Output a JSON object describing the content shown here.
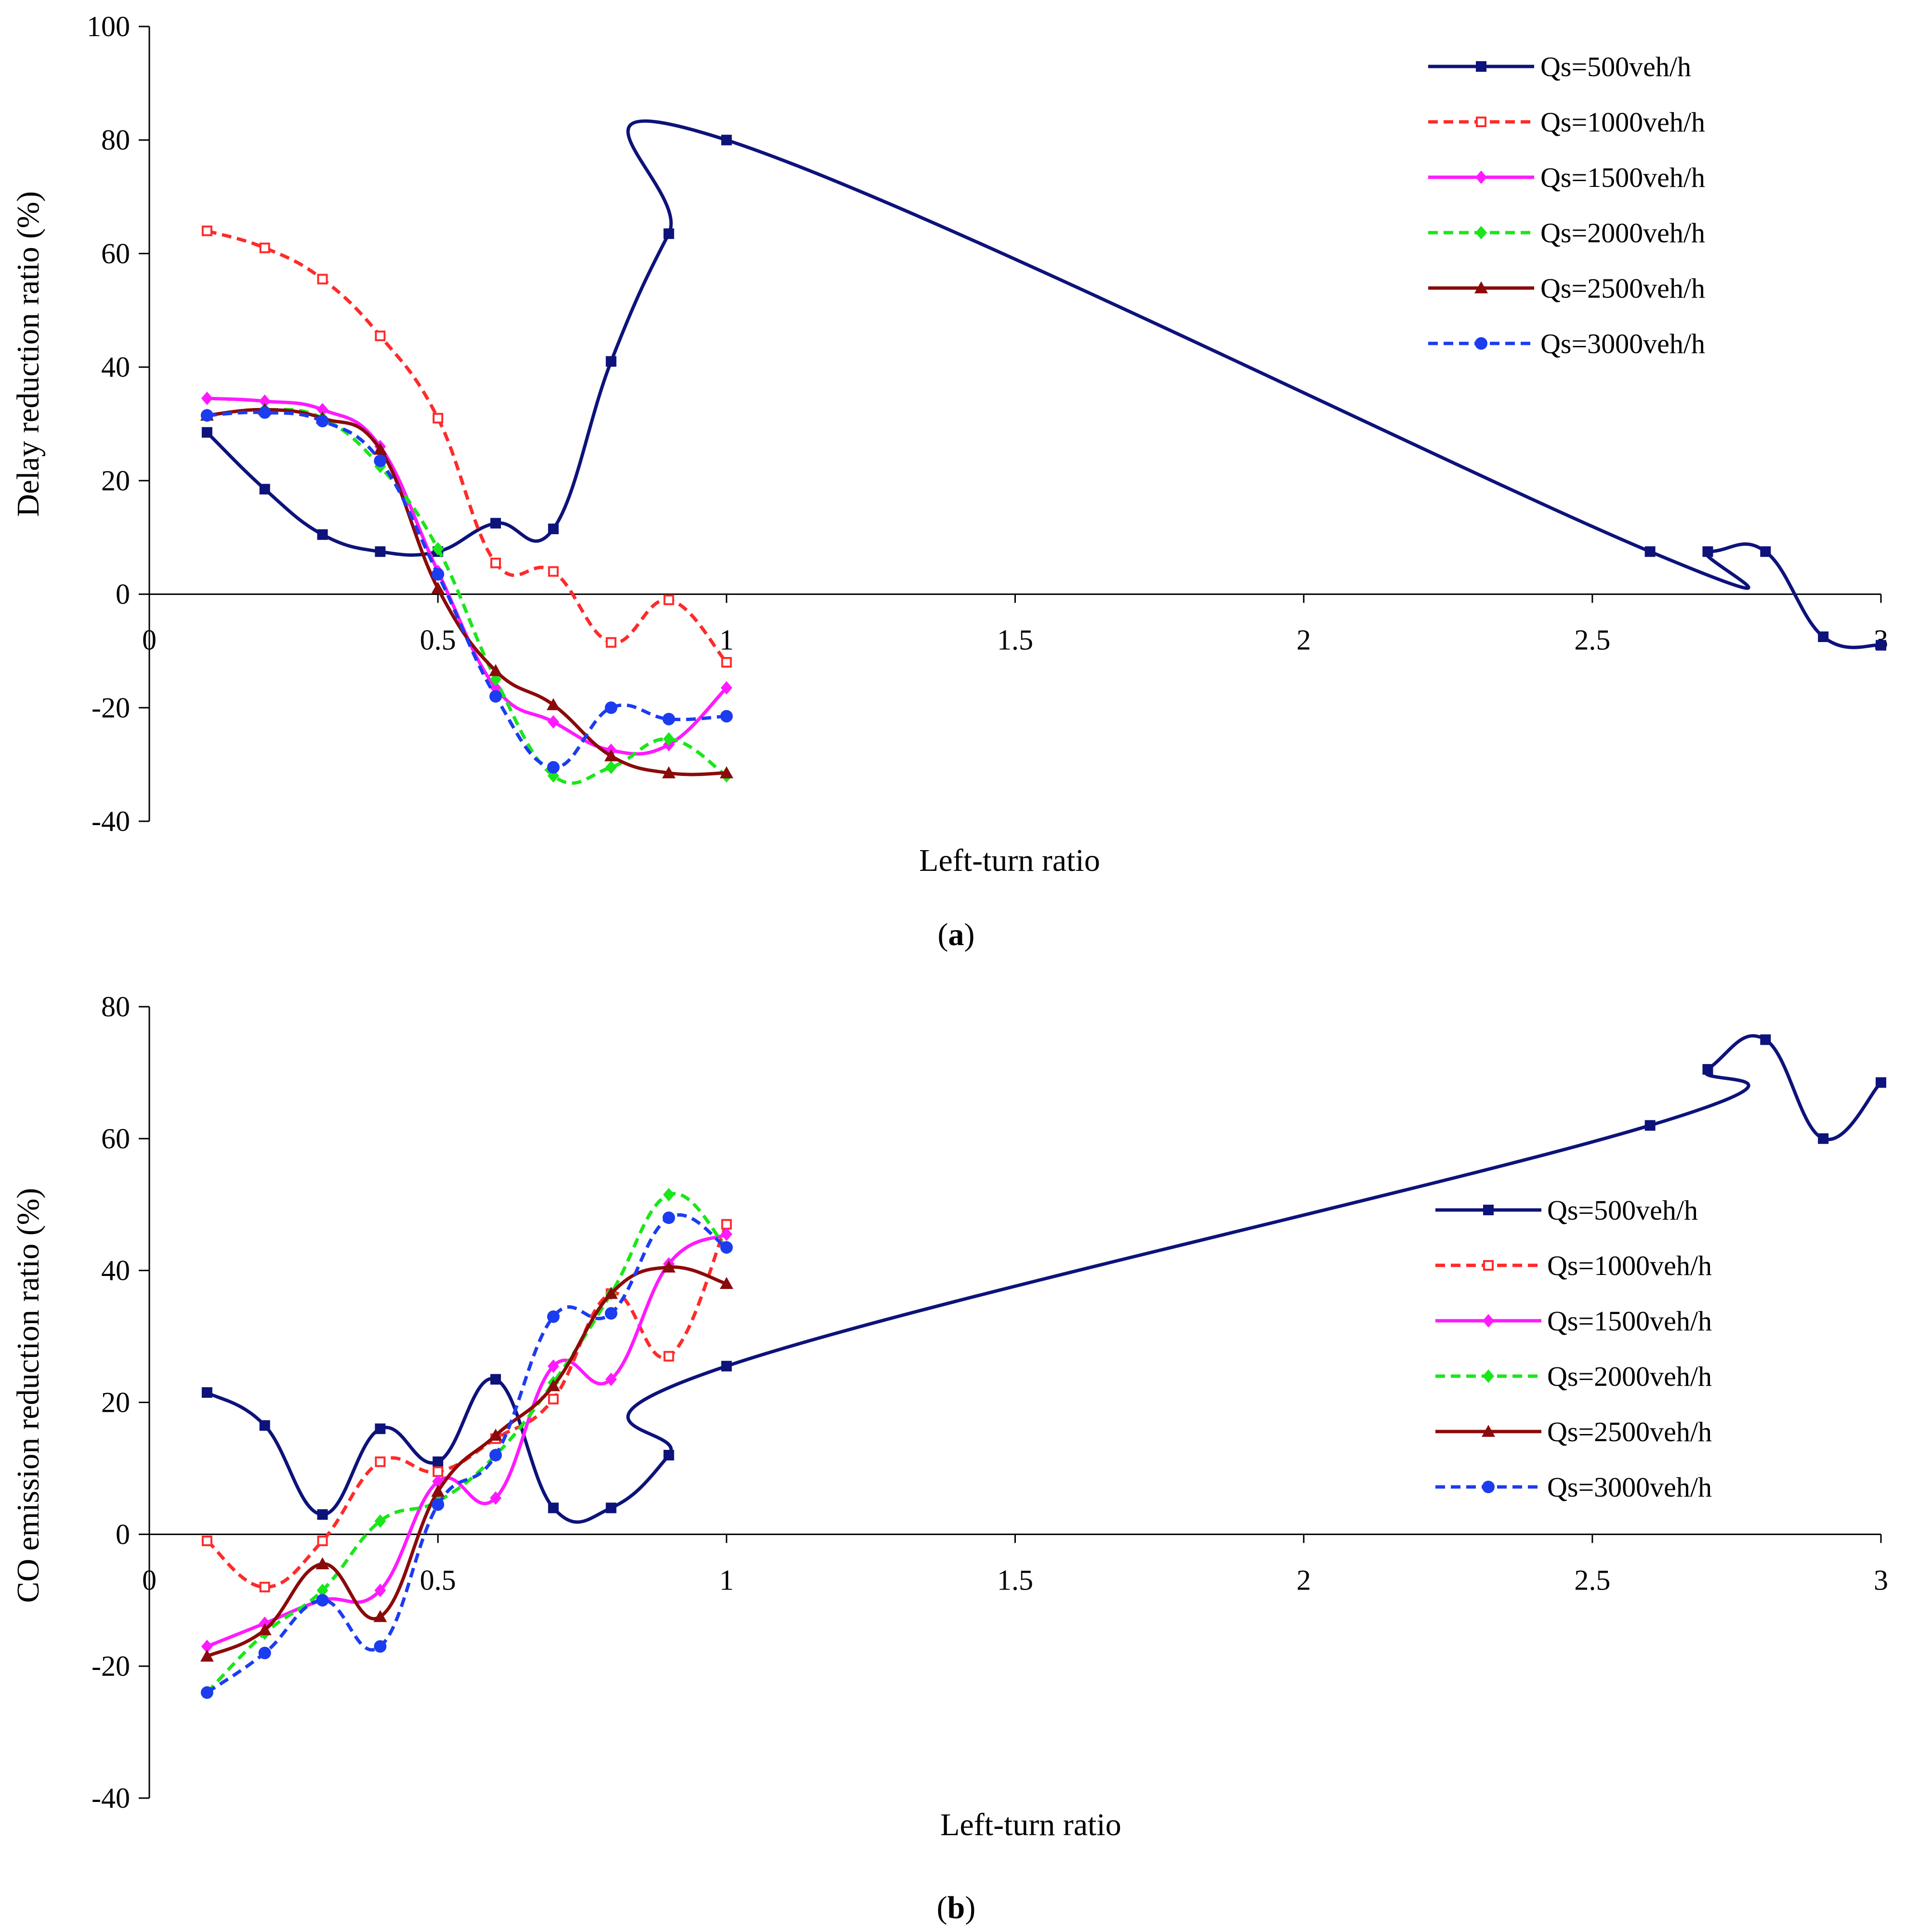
{
  "chart_data": [
    {
      "type": "line",
      "panel_label": "a",
      "xlabel": "Left-turn ratio",
      "ylabel": "Delay reduction ratio (%)",
      "xlim": [
        0,
        3
      ],
      "ylim": [
        -40,
        100
      ],
      "xticks": [
        "0",
        "0.5",
        "1",
        "1.5",
        "2",
        "2.5",
        "3"
      ],
      "xtick_values": [
        0,
        0.5,
        1,
        1.5,
        2,
        2.5,
        3
      ],
      "yticks": [
        "-40",
        "-20",
        "0",
        "20",
        "40",
        "60",
        "80",
        "100"
      ],
      "ytick_values": [
        -40,
        -20,
        0,
        20,
        40,
        60,
        80,
        100
      ],
      "legend_position": "top-right",
      "grid": false,
      "series": [
        {
          "name": "Qs=500veh/h",
          "color": "#0d137a",
          "dash": false,
          "marker": "square-filled",
          "x": [
            0.1,
            0.2,
            0.3,
            0.4,
            0.5,
            0.6,
            0.7,
            0.8,
            0.9,
            1.0,
            2.6,
            2.7,
            2.8,
            2.9,
            3.0
          ],
          "y": [
            28.5,
            18.5,
            10.5,
            7.5,
            7.5,
            12.5,
            11.5,
            41,
            63.5,
            80,
            7.5,
            7.5,
            7.5,
            -7.5,
            -9
          ]
        },
        {
          "name": "Qs=1000veh/h",
          "color": "#ff2a2a",
          "dash": true,
          "marker": "square-open",
          "x": [
            0.1,
            0.2,
            0.3,
            0.4,
            0.5,
            0.6,
            0.7,
            0.8,
            0.9,
            1.0
          ],
          "y": [
            64,
            61,
            55.5,
            45.5,
            31,
            5.5,
            4,
            -8.5,
            -1,
            -12
          ]
        },
        {
          "name": "Qs=1500veh/h",
          "color": "#ff1aff",
          "dash": false,
          "marker": "diamond",
          "x": [
            0.1,
            0.2,
            0.3,
            0.4,
            0.5,
            0.6,
            0.7,
            0.8,
            0.9,
            1.0
          ],
          "y": [
            34.5,
            34,
            32.5,
            26,
            4,
            -16.5,
            -22.5,
            -27.5,
            -26.5,
            -16.5
          ]
        },
        {
          "name": "Qs=2000veh/h",
          "color": "#1ae61a",
          "dash": true,
          "marker": "diamond",
          "x": [
            0.1,
            0.2,
            0.3,
            0.4,
            0.5,
            0.6,
            0.7,
            0.8,
            0.9,
            1.0
          ],
          "y": [
            31.5,
            32.5,
            31,
            22.5,
            8,
            -15,
            -32,
            -30.5,
            -25.5,
            -32
          ]
        },
        {
          "name": "Qs=2500veh/h",
          "color": "#8b0a0a",
          "dash": false,
          "marker": "triangle",
          "x": [
            0.1,
            0.2,
            0.3,
            0.4,
            0.5,
            0.6,
            0.7,
            0.8,
            0.9,
            1.0
          ],
          "y": [
            31.5,
            32.5,
            31,
            25.5,
            1,
            -13.5,
            -19.5,
            -28.5,
            -31.5,
            -31.5
          ]
        },
        {
          "name": "Qs=3000veh/h",
          "color": "#1c3cf0",
          "dash": true,
          "marker": "circle",
          "x": [
            0.1,
            0.2,
            0.3,
            0.4,
            0.5,
            0.6,
            0.7,
            0.8,
            0.9,
            1.0
          ],
          "y": [
            31.5,
            32,
            30.5,
            23.5,
            3.5,
            -18,
            -30.5,
            -20,
            -22,
            -21.5
          ]
        }
      ]
    },
    {
      "type": "line",
      "panel_label": "b",
      "xlabel": "Left-turn ratio",
      "ylabel": "CO emission reduction ratio (%)",
      "xlim": [
        0,
        3
      ],
      "ylim": [
        -40,
        80
      ],
      "xticks": [
        "0",
        "0.5",
        "1",
        "1.5",
        "2",
        "2.5",
        "3"
      ],
      "xtick_values": [
        0,
        0.5,
        1,
        1.5,
        2,
        2.5,
        3
      ],
      "yticks": [
        "-40",
        "-20",
        "0",
        "20",
        "40",
        "60",
        "80"
      ],
      "ytick_values": [
        -40,
        -20,
        0,
        20,
        40,
        60,
        80
      ],
      "legend_position": "center-right",
      "grid": false,
      "series": [
        {
          "name": "Qs=500veh/h",
          "color": "#0d137a",
          "dash": false,
          "marker": "square-filled",
          "x": [
            0.1,
            0.2,
            0.3,
            0.4,
            0.5,
            0.6,
            0.7,
            0.8,
            0.9,
            1.0,
            2.6,
            2.7,
            2.8,
            2.9,
            3.0
          ],
          "y": [
            21.5,
            16.5,
            3,
            16,
            11,
            23.5,
            4,
            4,
            12,
            25.5,
            62,
            70.5,
            75,
            60,
            68.5
          ]
        },
        {
          "name": "Qs=1000veh/h",
          "color": "#ff2a2a",
          "dash": true,
          "marker": "square-open",
          "x": [
            0.1,
            0.2,
            0.3,
            0.4,
            0.5,
            0.6,
            0.7,
            0.8,
            0.9,
            1.0
          ],
          "y": [
            -1,
            -8,
            -1,
            11,
            9.5,
            14.5,
            20.5,
            36.5,
            27,
            47
          ]
        },
        {
          "name": "Qs=1500veh/h",
          "color": "#ff1aff",
          "dash": false,
          "marker": "diamond",
          "x": [
            0.1,
            0.2,
            0.3,
            0.4,
            0.5,
            0.6,
            0.7,
            0.8,
            0.9,
            1.0
          ],
          "y": [
            -17,
            -13.5,
            -10,
            -8.5,
            8,
            5.5,
            25.5,
            23.5,
            41,
            45.5
          ]
        },
        {
          "name": "Qs=2000veh/h",
          "color": "#1ae61a",
          "dash": true,
          "marker": "diamond",
          "x": [
            0.1,
            0.2,
            0.3,
            0.4,
            0.5,
            0.6,
            0.7,
            0.8,
            0.9,
            1.0
          ],
          "y": [
            -24,
            -15,
            -8.5,
            2,
            5,
            12,
            23,
            36.5,
            51.5,
            43.5
          ]
        },
        {
          "name": "Qs=2500veh/h",
          "color": "#8b0a0a",
          "dash": false,
          "marker": "triangle",
          "x": [
            0.1,
            0.2,
            0.3,
            0.4,
            0.5,
            0.6,
            0.7,
            0.8,
            0.9,
            1.0
          ],
          "y": [
            -18.5,
            -14.5,
            -4.5,
            -12.5,
            6.5,
            15,
            22.5,
            36.5,
            40.5,
            38
          ]
        },
        {
          "name": "Qs=3000veh/h",
          "color": "#1c3cf0",
          "dash": true,
          "marker": "circle",
          "x": [
            0.1,
            0.2,
            0.3,
            0.4,
            0.5,
            0.6,
            0.7,
            0.8,
            0.9,
            1.0
          ],
          "y": [
            -24,
            -18,
            -10,
            -17,
            4.5,
            12,
            33,
            33.5,
            48,
            43.5
          ]
        }
      ]
    }
  ]
}
